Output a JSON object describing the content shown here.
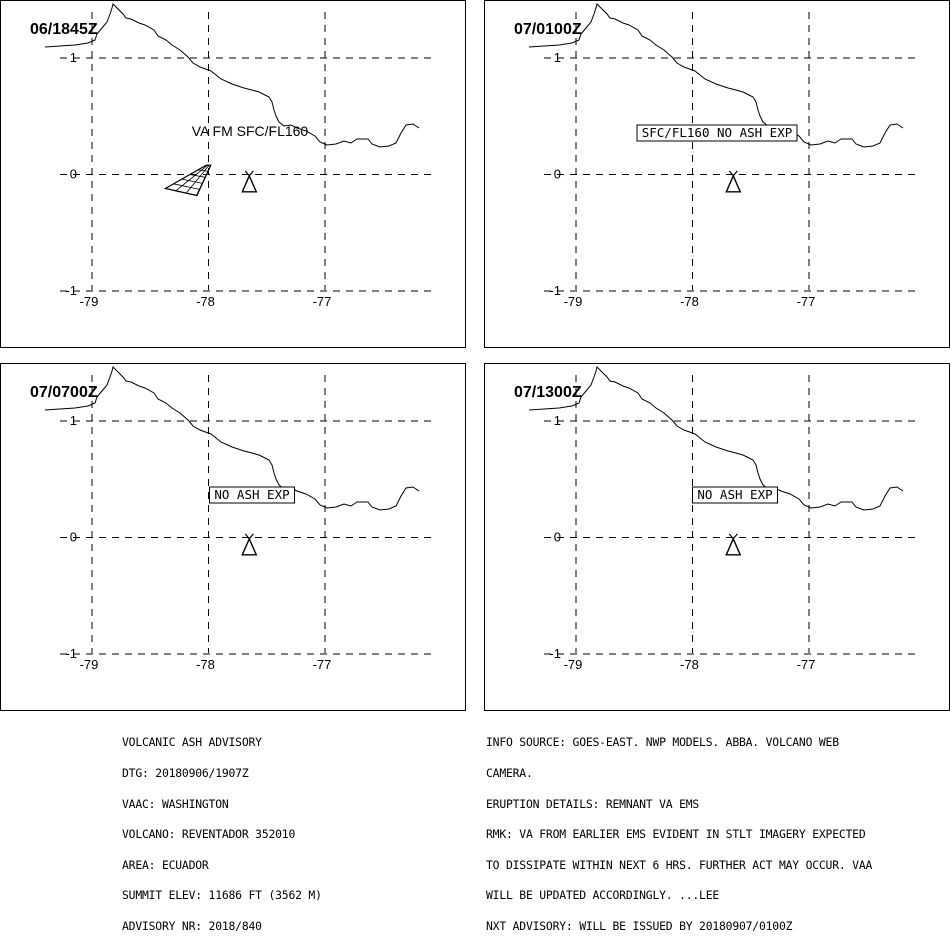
{
  "panels": [
    {
      "time_label": "06/1845Z",
      "box_label": "VA FM SFC/FL160",
      "box_style": "plain",
      "show_ash_polygon": true
    },
    {
      "time_label": "07/0100Z",
      "box_label": "SFC/FL160 NO ASH EXP",
      "box_style": "boxed",
      "show_ash_polygon": false
    },
    {
      "time_label": "07/0700Z",
      "box_label": "NO ASH EXP",
      "box_style": "boxed",
      "show_ash_polygon": false
    },
    {
      "time_label": "07/1300Z",
      "box_label": "NO ASH EXP",
      "box_style": "boxed",
      "show_ash_polygon": false
    }
  ],
  "map": {
    "lon_ticks": [
      "-79",
      "-78",
      "-77"
    ],
    "lat_ticks": [
      "1",
      "0",
      "-1"
    ],
    "lon_values": [
      -79,
      -78,
      -77
    ],
    "lat_values": [
      1,
      0,
      -1
    ],
    "volcano_lon": -77.65,
    "volcano_lat": -0.08,
    "ash_polygon": [
      [
        -78.37,
        -0.12
      ],
      [
        -78.02,
        0.08
      ],
      [
        -77.98,
        0.08
      ],
      [
        -78.1,
        -0.18
      ],
      [
        -78.37,
        -0.12
      ]
    ],
    "colors": {
      "line": "#000000",
      "background": "#ffffff"
    }
  },
  "advisory_left": [
    "VOLCANIC ASH ADVISORY",
    "DTG: 20180906/1907Z",
    "VAAC: WASHINGTON",
    "VOLCANO: REVENTADOR 352010",
    "AREA: ECUADOR",
    "SUMMIT ELEV: 11686 FT (3562 M)",
    "ADVISORY NR: 2018/840"
  ],
  "advisory_right": [
    "INFO SOURCE: GOES-EAST. NWP MODELS. ABBA. VOLCANO WEB",
    "CAMERA.",
    "ERUPTION DETAILS: REMNANT VA EMS",
    "RMK: VA FROM EARLIER EMS EVIDENT IN STLT IMAGERY EXPECTED",
    "TO DISSIPATE WITHIN NEXT 6 HRS. FURTHER ACT MAY OCCUR. VAA",
    "WILL BE UPDATED ACCORDINGLY. ...LEE",
    "NXT ADVISORY: WILL BE ISSUED BY 20180907/0100Z"
  ]
}
